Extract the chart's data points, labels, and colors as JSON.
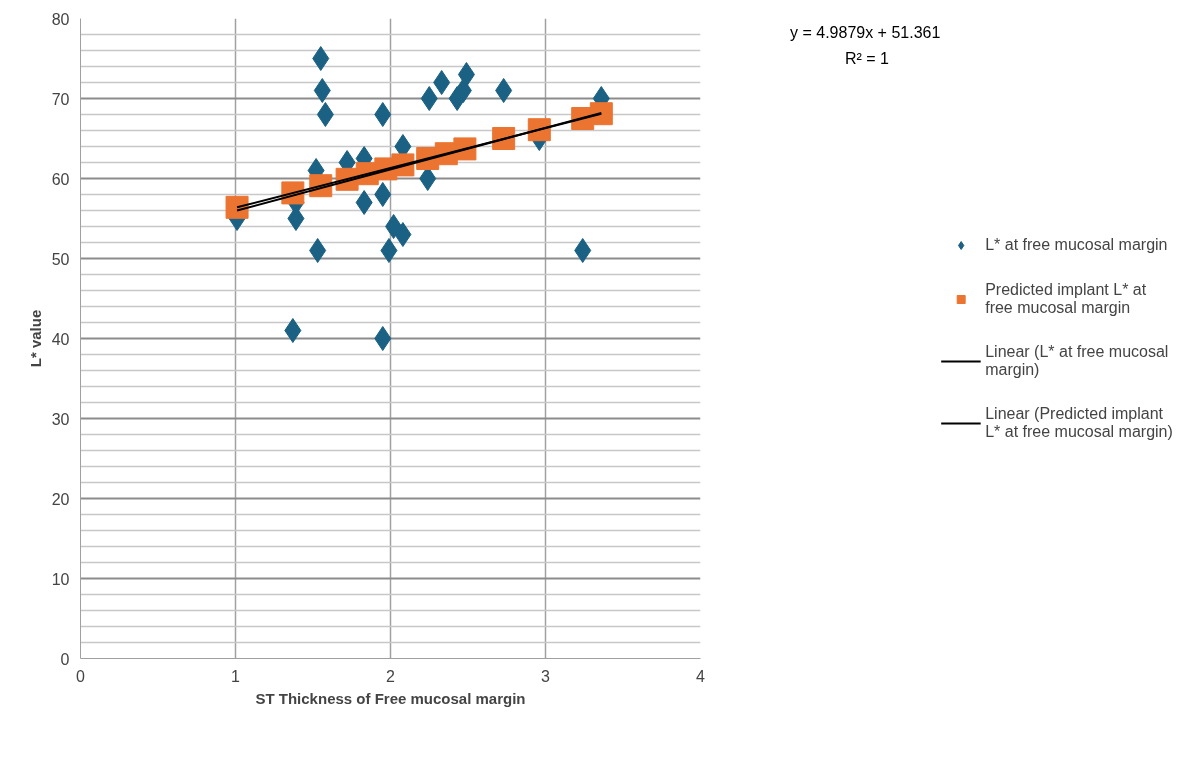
{
  "chart_data": {
    "type": "scatter",
    "xlabel": "ST Thickness of Free mucosal margin",
    "ylabel": "L* value",
    "xlim": [
      0,
      4
    ],
    "xticks": [
      0,
      1,
      2,
      3,
      4
    ],
    "ylim": [
      0,
      80
    ],
    "yticks": [
      0,
      10,
      20,
      30,
      40,
      50,
      60,
      70,
      80
    ],
    "grid": true,
    "legend": "right",
    "annotations": [
      "y = 4.9879x + 51.361",
      "R² = 1"
    ],
    "series": [
      {
        "name": "L* at free mucosal margin",
        "marker": "diamond",
        "color": "#1b6183",
        "x": [
          1.01,
          1.37,
          1.39,
          1.39,
          1.52,
          1.53,
          1.55,
          1.56,
          1.58,
          1.72,
          1.83,
          1.83,
          1.95,
          1.95,
          1.95,
          1.99,
          2.02,
          2.08,
          2.08,
          2.24,
          2.25,
          2.33,
          2.43,
          2.47,
          2.49,
          2.73,
          2.96,
          3.24,
          3.36
        ],
        "values": [
          55,
          41,
          55,
          57,
          61,
          51,
          75,
          71,
          68,
          62,
          62.5,
          57,
          68,
          58,
          40,
          51,
          54,
          53,
          64,
          60,
          70,
          72,
          70,
          71,
          73,
          71,
          65,
          51,
          70
        ]
      },
      {
        "name": "Predicted implant L* at free mucosal margin",
        "marker": "square",
        "color": "#ec7431",
        "x": [
          1.01,
          1.37,
          1.55,
          1.72,
          1.85,
          1.97,
          2.08,
          2.24,
          2.36,
          2.48,
          2.73,
          2.96,
          3.24,
          3.36
        ],
        "values": [
          56.4,
          58.2,
          59.1,
          59.9,
          60.6,
          61.2,
          61.7,
          62.5,
          63.1,
          63.7,
          65.0,
          66.1,
          67.5,
          68.1
        ]
      },
      {
        "name": "Linear (L* at free mucosal margin)",
        "type": "line",
        "line_style": "solid",
        "color": "#000000",
        "x": [
          1.01,
          3.36
        ],
        "values": [
          56.0,
          68.2
        ]
      },
      {
        "name": "Linear (Predicted implant L* at free mucosal margin)",
        "type": "line",
        "line_style": "solid",
        "color": "#000000",
        "x": [
          1.01,
          3.36
        ],
        "values": [
          56.4,
          68.1
        ]
      }
    ]
  }
}
